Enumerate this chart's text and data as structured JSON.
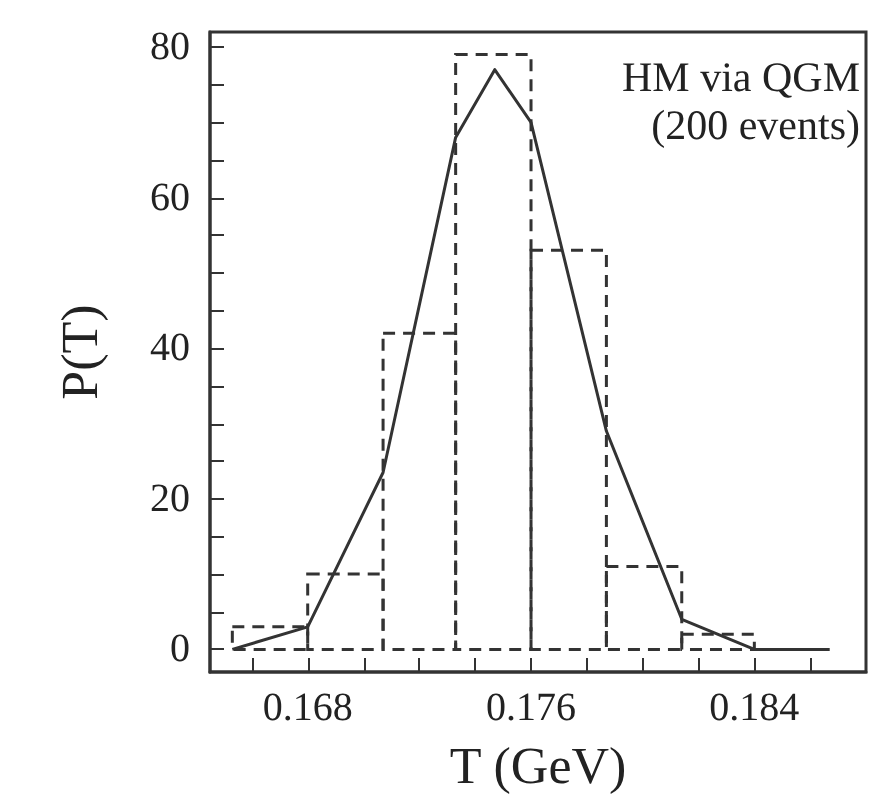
{
  "chart_data": {
    "type": "histogram",
    "xlabel": "T (GeV)",
    "ylabel": "P(T)",
    "annotations": [
      "HM via QGM",
      "(200 events)"
    ],
    "xlim": [
      0.1645,
      0.188
    ],
    "ylim": [
      -3,
      82
    ],
    "xticks": [
      {
        "value": 0.166,
        "label": null
      },
      0.168,
      {
        "value": 0.17,
        "label": null
      },
      {
        "value": 0.172,
        "label": null
      },
      {
        "value": 0.174,
        "label": null
      },
      0.176,
      {
        "value": 0.178,
        "label": null
      },
      {
        "value": 0.18,
        "label": null
      },
      {
        "value": 0.182,
        "label": null
      },
      0.184,
      {
        "value": 0.186,
        "label": null
      }
    ],
    "yticks": [
      0,
      {
        "value": 5,
        "label": null
      },
      {
        "value": 10,
        "label": null
      },
      {
        "value": 15,
        "label": null
      },
      20,
      {
        "value": 25,
        "label": null
      },
      {
        "value": 30,
        "label": null
      },
      {
        "value": 35,
        "label": null
      },
      40,
      {
        "value": 45,
        "label": null
      },
      {
        "value": 50,
        "label": null
      },
      {
        "value": 55,
        "label": null
      },
      60,
      {
        "value": 65,
        "label": null
      },
      {
        "value": 70,
        "label": null
      },
      {
        "value": 75,
        "label": null
      },
      80
    ],
    "grid": false,
    "series": [
      {
        "color": "#333333",
        "line_style": "dashed",
        "bins": [
          0.1653,
          0.168,
          0.1707,
          0.1733,
          0.176,
          0.1787,
          0.1814,
          0.184,
          0.1867
        ],
        "values": [
          3,
          10,
          42,
          79,
          53,
          11,
          2,
          0
        ]
      },
      {
        "type": "line",
        "color": "#333333",
        "line_style": "solid",
        "marker": "none",
        "x": [
          0.1653,
          0.168,
          0.1707,
          0.1733,
          0.1747,
          0.176,
          0.1787,
          0.1814,
          0.184,
          0.1867
        ],
        "values": [
          0,
          3,
          23.5,
          68,
          77,
          70,
          29,
          4,
          0,
          0
        ]
      }
    ]
  }
}
